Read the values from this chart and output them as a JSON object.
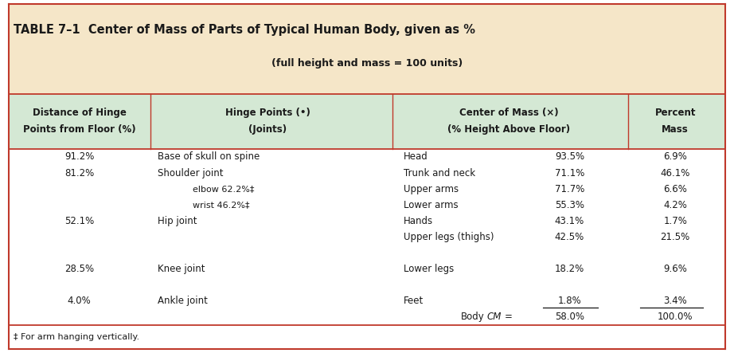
{
  "title": "TABLE 7–1  Center of Mass of Parts of Typical Human Body, given as %",
  "subtitle": "(full height and mass = 100 units)",
  "title_bg": "#F5E6C8",
  "header_bg": "#D4E8D4",
  "border_color": "#C0392B",
  "text_color": "#1a1a1a",
  "body_fill": "#F2C9B0",
  "body_edge": "#5a3010",
  "footnote": "‡ For arm hanging vertically.",
  "row_data": [
    [
      "91.2%",
      "Base of skull on spine",
      "Head",
      "93.5%",
      "6.9%"
    ],
    [
      "81.2%",
      "Shoulder joint",
      "Trunk and neck",
      "71.1%",
      "46.1%"
    ],
    [
      "",
      "elbow 62.2%‡",
      "Upper arms",
      "71.7%",
      "6.6%"
    ],
    [
      "",
      "wrist 46.2%‡",
      "Lower arms",
      "55.3%",
      "4.2%"
    ],
    [
      "52.1%",
      "Hip joint",
      "Hands",
      "43.1%",
      "1.7%"
    ],
    [
      "",
      "",
      "Upper legs (thighs)",
      "42.5%",
      "21.5%"
    ],
    [
      "",
      "",
      "",
      "",
      ""
    ],
    [
      "28.5%",
      "Knee joint",
      "Lower legs",
      "18.2%",
      "9.6%"
    ],
    [
      "",
      "",
      "",
      "",
      ""
    ],
    [
      "4.0%",
      "Ankle joint",
      "Feet",
      "1.8%",
      "3.4%"
    ],
    [
      "",
      "",
      "Body CM",
      "58.0%",
      "100.0%"
    ]
  ]
}
